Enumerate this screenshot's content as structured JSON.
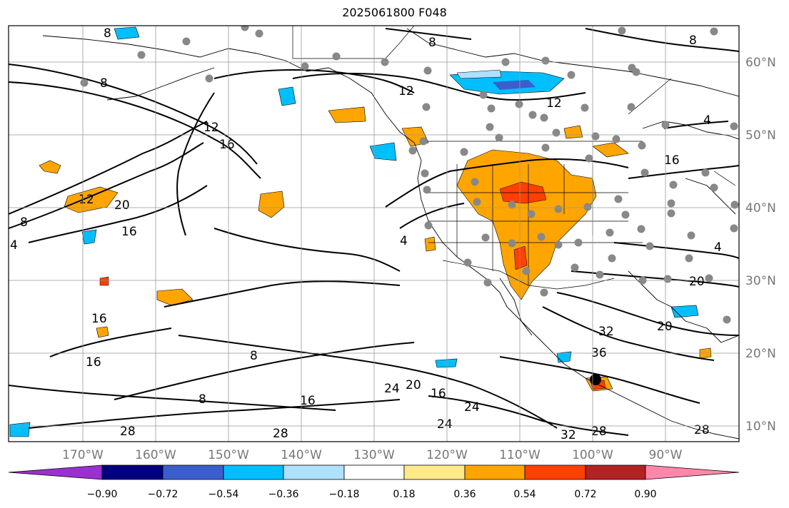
{
  "title": "2025061800 F048",
  "map": {
    "lon_labels": [
      "170°W",
      "160°W",
      "150°W",
      "140°W",
      "130°W",
      "120°W",
      "110°W",
      "100°W",
      "90°W"
    ],
    "lat_labels": [
      "60°N",
      "50°N",
      "40°N",
      "30°N",
      "20°N",
      "10°N"
    ],
    "contour_labels": [
      "8",
      "8",
      "8",
      "8",
      "8",
      "8",
      "8",
      "4",
      "4",
      "4",
      "4",
      "12",
      "12",
      "12",
      "12",
      "16",
      "16",
      "16",
      "16",
      "16",
      "16",
      "16",
      "20",
      "20",
      "20",
      "20",
      "24",
      "24",
      "24",
      "28",
      "28",
      "28",
      "28",
      "32",
      "32",
      "36"
    ]
  },
  "colorbar": {
    "tick_labels": [
      "−0.90",
      "−0.72",
      "−0.54",
      "−0.36",
      "−0.18",
      "0.18",
      "0.36",
      "0.54",
      "0.72",
      "0.90"
    ],
    "colors": [
      "#9b30d0",
      "#000080",
      "#3a5fcd",
      "#00bfff",
      "#aee0ff",
      "#ffffff",
      "#ffe98a",
      "#ffa500",
      "#ff4000",
      "#b22222",
      "#ff88aa"
    ]
  }
}
